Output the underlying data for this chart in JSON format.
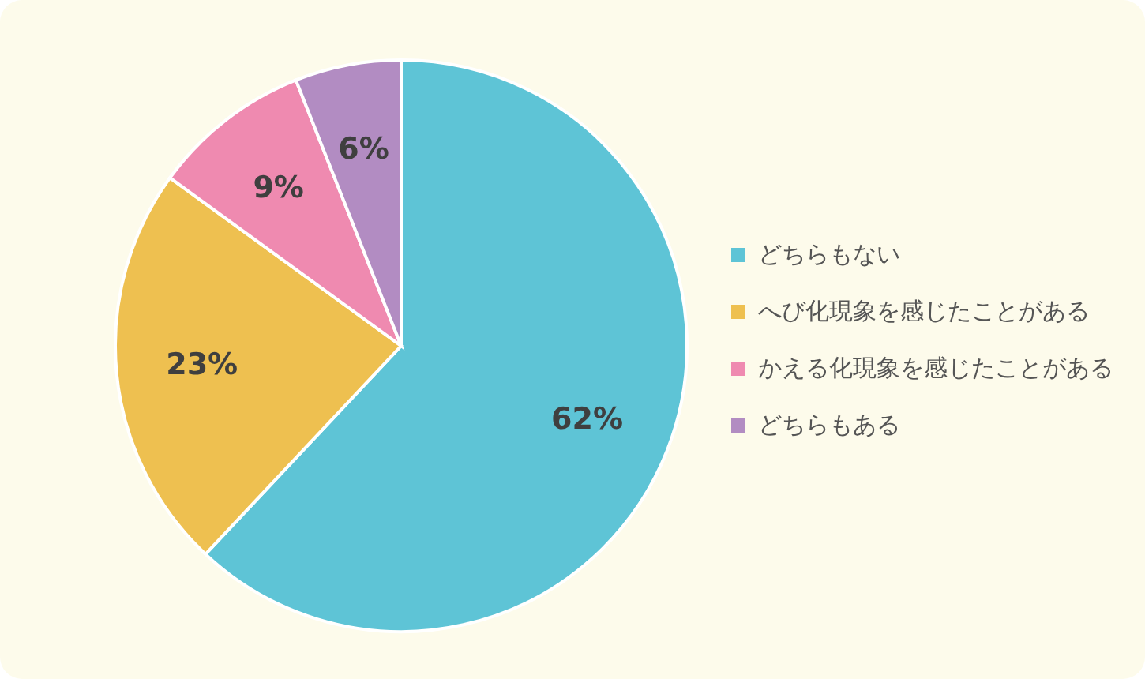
{
  "chart_data": {
    "type": "pie",
    "categories": [
      "どちらもない",
      "へび化現象を感じたことがある",
      "かえる化現象を感じたことがある",
      "どちらもある"
    ],
    "values": [
      62,
      23,
      9,
      6
    ],
    "colors": [
      "#5ec4d6",
      "#eec050",
      "#ef8ab0",
      "#b28cc2"
    ],
    "value_labels": [
      "62%",
      "23%",
      "9%",
      "6%"
    ],
    "legend": "right"
  }
}
